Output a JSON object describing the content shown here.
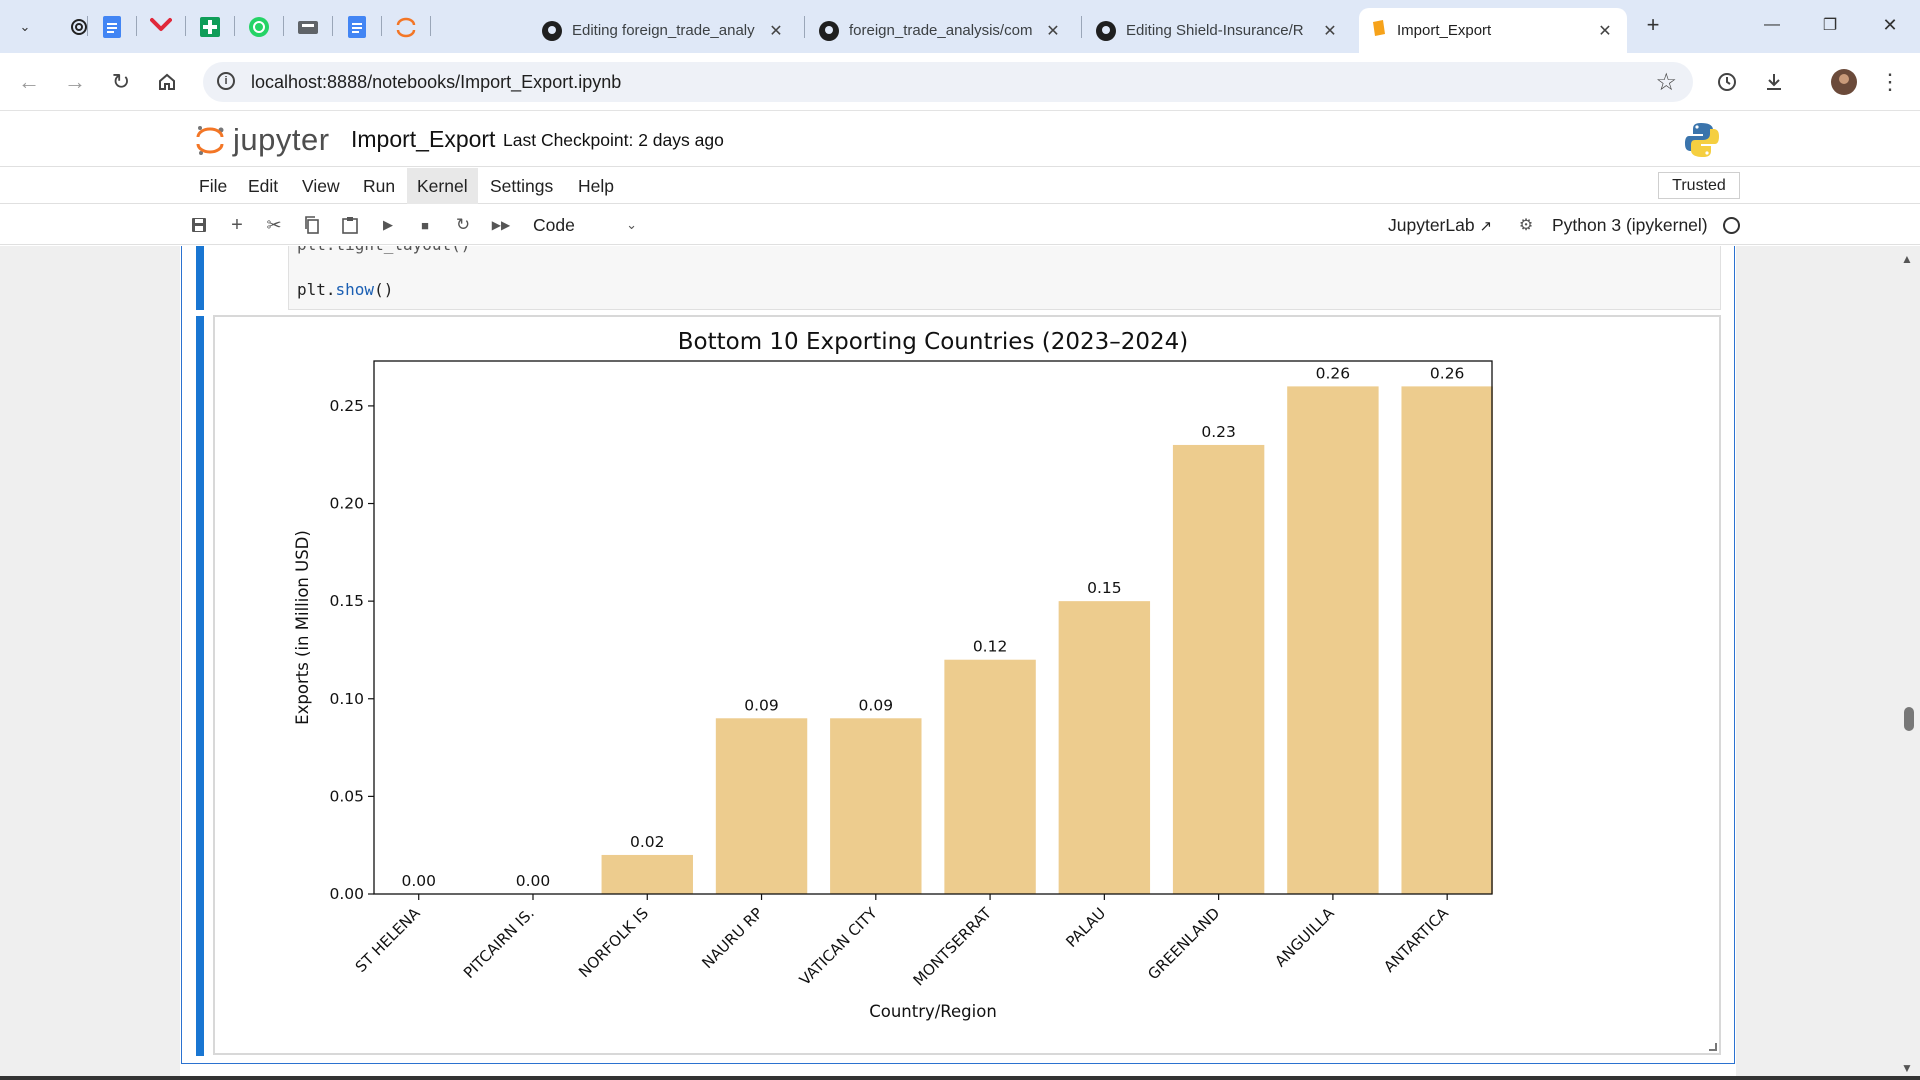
{
  "browser": {
    "tabs": [
      {
        "title": "Editing foreign_trade_analy",
        "icon": "github-icon"
      },
      {
        "title": "foreign_trade_analysis/com",
        "icon": "github-icon"
      },
      {
        "title": "Editing Shield-Insurance/R",
        "icon": "github-icon"
      },
      {
        "title": "Import_Export",
        "icon": "jupyter-icon",
        "active": true
      }
    ],
    "pinned_icons": [
      "chatgpt-icon",
      "google-docs-icon",
      "pocket-icon",
      "google-sheets-icon",
      "whatsapp-icon",
      "chrome-extension-icon",
      "google-docs-icon",
      "jupyter-icon"
    ],
    "url": "localhost:8888/notebooks/Import_Export.ipynb"
  },
  "jupyter": {
    "logo_text": "jupyter",
    "notebook_name": "Import_Export",
    "checkpoint": "Last Checkpoint: 2 days ago",
    "menu": [
      "File",
      "Edit",
      "View",
      "Run",
      "Kernel",
      "Settings",
      "Help"
    ],
    "trusted": "Trusted",
    "cell_type": "Code",
    "jupyterlab_link": "JupyterLab",
    "kernel": "Python 3 (ipykernel)"
  },
  "code": {
    "partial_line": "plt.tight_layout()",
    "obj": "plt.",
    "fn": "show",
    "call": "()"
  },
  "chart_data": {
    "type": "bar",
    "title": "Bottom 10 Exporting Countries (2023–2024)",
    "xlabel": "Country/Region",
    "ylabel": "Exports (in Million USD)",
    "categories": [
      "ST HELENA",
      "PITCAIRN IS.",
      "NORFOLK IS",
      "NAURU RP",
      "VATICAN CITY",
      "MONTSERRAT",
      "PALAU",
      "GREENLAND",
      "ANGUILLA",
      "ANTARTICA"
    ],
    "values": [
      0.0,
      0.0,
      0.02,
      0.09,
      0.09,
      0.12,
      0.15,
      0.23,
      0.26,
      0.26
    ],
    "data_labels": [
      "0.00",
      "0.00",
      "0.02",
      "0.09",
      "0.09",
      "0.12",
      "0.15",
      "0.23",
      "0.26",
      "0.26"
    ],
    "yticks": [
      "0.00",
      "0.05",
      "0.10",
      "0.15",
      "0.20",
      "0.25"
    ],
    "ylim": [
      0,
      0.273
    ],
    "bar_color": "#edcc8e",
    "grid": false,
    "legend": "none"
  }
}
